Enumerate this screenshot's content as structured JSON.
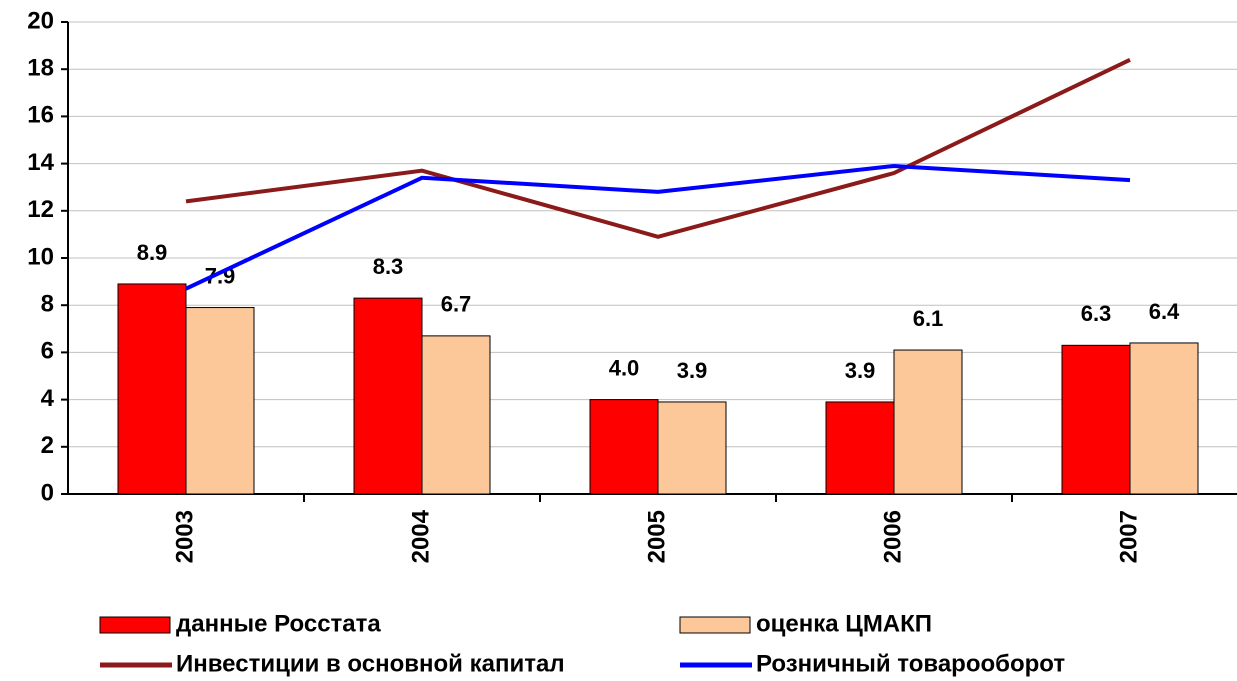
{
  "chart_data": {
    "type": "bar_line",
    "categories": [
      "2003",
      "2004",
      "2005",
      "2006",
      "2007"
    ],
    "series": [
      {
        "name": "данные Росстата",
        "type": "bar",
        "color": "#ff0000",
        "values": [
          8.9,
          8.3,
          4.0,
          3.9,
          6.3
        ],
        "value_labels": [
          "8.9",
          "8.3",
          "4.0",
          "3.9",
          "6.3"
        ]
      },
      {
        "name": "оценка ЦМАКП",
        "type": "bar",
        "color": "#fcc89a",
        "values": [
          7.9,
          6.7,
          3.9,
          6.1,
          6.4
        ],
        "value_labels": [
          "7.9",
          "6.7",
          "3.9",
          "6.1",
          "6.4"
        ]
      },
      {
        "name": "Инвестиции в основной капитал",
        "type": "line",
        "color": "#8b1a1a",
        "values": [
          12.4,
          13.7,
          10.9,
          13.6,
          18.4
        ]
      },
      {
        "name": "Розничный товарооборот",
        "type": "line",
        "color": "#0000ff",
        "values": [
          8.7,
          13.4,
          12.8,
          13.9,
          13.3
        ]
      }
    ],
    "ylim": [
      0,
      20
    ],
    "yticks": [
      0,
      2,
      4,
      6,
      8,
      10,
      12,
      14,
      16,
      18,
      20
    ],
    "grid": true
  }
}
